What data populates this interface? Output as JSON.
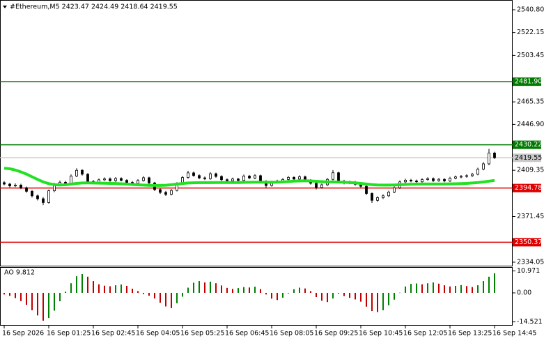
{
  "chart_data": [
    {
      "type": "candlestick",
      "title": "#Ethereum,M5  2423.47 2424.49 2418.64 2419.55",
      "ylim": [
        2330.6,
        2548.8
      ],
      "yticks": [
        {
          "value": 2540.8,
          "label": "2540.80"
        },
        2522.15,
        2503.45,
        2465.35,
        {
          "value": 2446.9,
          "label": "2446.90"
        },
        2409.35,
        2371.45,
        2334.05
      ],
      "categories": [
        "16 Sep 2026",
        null,
        null,
        null,
        null,
        null,
        null,
        null,
        "16 Sep 01:25",
        null,
        null,
        null,
        null,
        null,
        null,
        null,
        "16 Sep 02:45",
        null,
        null,
        null,
        null,
        null,
        null,
        null,
        "16 Sep 04:05",
        null,
        null,
        null,
        null,
        null,
        null,
        null,
        "16 Sep 05:25",
        null,
        null,
        null,
        null,
        null,
        null,
        null,
        "16 Sep 06:45",
        null,
        null,
        null,
        null,
        null,
        null,
        null,
        "16 Sep 08:05",
        null,
        null,
        null,
        null,
        null,
        null,
        null,
        "16 Sep 09:25",
        null,
        null,
        null,
        null,
        null,
        null,
        null,
        "16 Sep 10:45",
        null,
        null,
        null,
        null,
        null,
        null,
        null,
        "16 Sep 12:05",
        null,
        null,
        null,
        null,
        null,
        null,
        null,
        "16 Sep 13:25",
        null,
        null,
        null,
        null,
        null,
        null,
        null,
        "16 Sep 14:45"
      ],
      "candle_colors": {
        "up": "#ffffff",
        "down": "#000000",
        "outline": "#000000"
      },
      "ohlc": [
        [
          2399.2,
          2400.4,
          2397.0,
          2398.0
        ],
        [
          2398.0,
          2399.1,
          2395.3,
          2396.5
        ],
        [
          2396.5,
          2398.6,
          2395.6,
          2397.2
        ],
        [
          2397.2,
          2398.3,
          2393.8,
          2395.0
        ],
        [
          2395.0,
          2396.0,
          2390.9,
          2392.1
        ],
        [
          2392.1,
          2393.2,
          2387.0,
          2388.4
        ],
        [
          2388.4,
          2389.5,
          2384.6,
          2386.0
        ],
        [
          2386.0,
          2387.3,
          2380.8,
          2382.9
        ],
        [
          2382.9,
          2393.6,
          2382.0,
          2392.5
        ],
        [
          2392.5,
          2399.0,
          2391.4,
          2397.8
        ],
        [
          2397.8,
          2400.9,
          2396.6,
          2399.5
        ],
        [
          2399.5,
          2400.7,
          2397.0,
          2398.2
        ],
        [
          2398.2,
          2405.9,
          2397.5,
          2404.6
        ],
        [
          2404.6,
          2411.0,
          2403.8,
          2409.3
        ],
        [
          2409.3,
          2410.2,
          2405.0,
          2406.1
        ],
        [
          2406.1,
          2407.0,
          2399.1,
          2400.2
        ],
        [
          2400.2,
          2401.3,
          2397.8,
          2398.9
        ],
        [
          2398.9,
          2402.6,
          2398.0,
          2401.5
        ],
        [
          2401.5,
          2403.5,
          2400.6,
          2402.3
        ],
        [
          2402.3,
          2403.4,
          2399.9,
          2400.8
        ],
        [
          2400.8,
          2403.7,
          2399.8,
          2402.6
        ],
        [
          2402.6,
          2403.6,
          2400.2,
          2401.1
        ],
        [
          2401.1,
          2402.0,
          2398.3,
          2399.4
        ],
        [
          2399.4,
          2400.5,
          2397.4,
          2398.6
        ],
        [
          2398.6,
          2402.0,
          2397.7,
          2400.9
        ],
        [
          2400.9,
          2404.5,
          2400.0,
          2403.2
        ],
        [
          2403.2,
          2404.1,
          2397.9,
          2399.0
        ],
        [
          2399.0,
          2399.8,
          2392.3,
          2393.5
        ],
        [
          2393.5,
          2394.6,
          2389.9,
          2391.2
        ],
        [
          2391.2,
          2392.4,
          2388.3,
          2389.6
        ],
        [
          2389.6,
          2393.9,
          2388.7,
          2392.8
        ],
        [
          2392.8,
          2399.6,
          2392.0,
          2398.5
        ],
        [
          2398.5,
          2404.8,
          2397.6,
          2403.4
        ],
        [
          2403.4,
          2408.9,
          2402.5,
          2407.2
        ],
        [
          2407.2,
          2408.3,
          2404.0,
          2405.0
        ],
        [
          2405.0,
          2406.0,
          2402.0,
          2403.1
        ],
        [
          2403.1,
          2404.2,
          2401.3,
          2402.4
        ],
        [
          2402.4,
          2407.8,
          2401.6,
          2406.5
        ],
        [
          2406.5,
          2407.4,
          2403.2,
          2404.3
        ],
        [
          2404.3,
          2405.2,
          2400.5,
          2401.6
        ],
        [
          2401.6,
          2402.7,
          2399.6,
          2400.7
        ],
        [
          2400.7,
          2403.3,
          2399.8,
          2402.2
        ],
        [
          2402.2,
          2403.1,
          2400.1,
          2401.0
        ],
        [
          2401.0,
          2405.8,
          2400.2,
          2404.6
        ],
        [
          2404.6,
          2405.5,
          2402.1,
          2403.0
        ],
        [
          2403.0,
          2406.1,
          2402.0,
          2404.9
        ],
        [
          2404.9,
          2405.8,
          2399.2,
          2400.3
        ],
        [
          2400.3,
          2401.2,
          2394.9,
          2396.8
        ],
        [
          2396.8,
          2400.8,
          2395.9,
          2399.7
        ],
        [
          2399.7,
          2401.6,
          2398.8,
          2400.5
        ],
        [
          2400.5,
          2402.9,
          2399.6,
          2401.8
        ],
        [
          2401.8,
          2404.6,
          2400.9,
          2403.5
        ],
        [
          2403.5,
          2404.4,
          2401.2,
          2402.1
        ],
        [
          2402.1,
          2405.2,
          2401.3,
          2404.0
        ],
        [
          2404.0,
          2405.0,
          2400.2,
          2401.3
        ],
        [
          2401.3,
          2402.1,
          2397.6,
          2398.7
        ],
        [
          2398.7,
          2399.5,
          2393.6,
          2395.2
        ],
        [
          2395.2,
          2398.5,
          2394.3,
          2397.4
        ],
        [
          2397.4,
          2403.0,
          2396.5,
          2401.9
        ],
        [
          2401.9,
          2409.5,
          2401.0,
          2407.3
        ],
        [
          2407.3,
          2408.2,
          2399.3,
          2400.4
        ],
        [
          2400.4,
          2401.5,
          2397.8,
          2398.9
        ],
        [
          2398.9,
          2400.8,
          2397.9,
          2399.6
        ],
        [
          2399.6,
          2400.6,
          2396.7,
          2397.8
        ],
        [
          2397.8,
          2398.9,
          2395.0,
          2396.2
        ],
        [
          2396.2,
          2397.1,
          2389.0,
          2390.3
        ],
        [
          2390.3,
          2391.2,
          2382.6,
          2384.7
        ],
        [
          2384.7,
          2388.0,
          2383.5,
          2386.9
        ],
        [
          2386.9,
          2389.6,
          2385.8,
          2388.4
        ],
        [
          2388.4,
          2392.6,
          2387.5,
          2391.5
        ],
        [
          2391.5,
          2396.2,
          2390.6,
          2395.0
        ],
        [
          2395.0,
          2401.0,
          2394.1,
          2399.8
        ],
        [
          2399.8,
          2402.4,
          2398.9,
          2401.2
        ],
        [
          2401.2,
          2402.3,
          2399.5,
          2400.6
        ],
        [
          2400.6,
          2401.7,
          2398.8,
          2399.9
        ],
        [
          2399.9,
          2402.8,
          2399.0,
          2401.7
        ],
        [
          2401.7,
          2403.6,
          2400.8,
          2402.5
        ],
        [
          2402.5,
          2403.4,
          2399.7,
          2400.8
        ],
        [
          2400.8,
          2403.0,
          2399.9,
          2401.9
        ],
        [
          2401.9,
          2402.8,
          2399.5,
          2400.6
        ],
        [
          2400.6,
          2403.9,
          2399.7,
          2402.8
        ],
        [
          2402.8,
          2405.0,
          2401.9,
          2403.9
        ],
        [
          2403.9,
          2405.4,
          2402.8,
          2404.3
        ],
        [
          2404.3,
          2406.0,
          2403.2,
          2404.9
        ],
        [
          2404.9,
          2407.2,
          2403.8,
          2406.1
        ],
        [
          2406.1,
          2411.4,
          2405.2,
          2410.2
        ],
        [
          2410.2,
          2416.0,
          2409.3,
          2414.6
        ],
        [
          2414.6,
          2426.8,
          2413.5,
          2423.47
        ],
        [
          2423.47,
          2424.49,
          2418.64,
          2419.55
        ]
      ],
      "moving_average": {
        "color": "#22e022",
        "values": [
          2411.0,
          2410.6,
          2409.5,
          2408.0,
          2406.2,
          2404.0,
          2401.8,
          2399.8,
          2398.4,
          2397.6,
          2397.3,
          2397.5,
          2398.0,
          2398.6,
          2398.9,
          2399.0,
          2398.9,
          2398.8,
          2398.7,
          2398.6,
          2398.5,
          2398.3,
          2398.0,
          2397.7,
          2397.4,
          2397.2,
          2397.0,
          2396.9,
          2396.9,
          2397.1,
          2397.5,
          2398.0,
          2398.5,
          2398.9,
          2399.1,
          2399.2,
          2399.2,
          2399.2,
          2399.3,
          2399.3,
          2399.3,
          2399.3,
          2399.3,
          2399.4,
          2399.5,
          2399.6,
          2399.6,
          2399.5,
          2399.5,
          2399.6,
          2399.8,
          2400.1,
          2400.4,
          2400.6,
          2400.7,
          2400.6,
          2400.3,
          2400.0,
          2399.8,
          2399.8,
          2399.7,
          2399.5,
          2399.3,
          2399.0,
          2398.6,
          2398.1,
          2397.6,
          2397.3,
          2397.2,
          2397.2,
          2397.3,
          2397.5,
          2397.7,
          2397.9,
          2398.0,
          2398.1,
          2398.1,
          2398.1,
          2398.1,
          2398.1,
          2398.2,
          2398.3,
          2398.4,
          2398.6,
          2398.9,
          2399.3,
          2399.8,
          2400.4,
          2401.0
        ]
      },
      "levels": [
        {
          "value": 2481.9,
          "label": "2481.90",
          "color": "#007a00",
          "text_color": "#ffffff"
        },
        {
          "value": 2430.22,
          "label": "2430.22",
          "color": "#007a00",
          "text_color": "#ffffff"
        },
        {
          "value": 2419.55,
          "label": "2419.55",
          "color": "#c8c8c8",
          "text_color": "#000000"
        },
        {
          "value": 2394.78,
          "label": "2394.78",
          "color": "#e00000",
          "text_color": "#ffffff"
        },
        {
          "value": 2350.37,
          "label": "2350.37",
          "color": "#e00000",
          "text_color": "#ffffff"
        }
      ]
    },
    {
      "type": "bar",
      "title": "AO 9.812",
      "ylim": [
        -16.4,
        12.9
      ],
      "yticks": [
        10.971,
        {
          "value": 0,
          "label": "0.00"
        },
        -14.521
      ],
      "colors": {
        "up": "#008000",
        "down": "#c00000"
      },
      "values": [
        -0.8,
        -1.5,
        -2.6,
        -4.1,
        -6.0,
        -8.7,
        -11.3,
        -13.9,
        -12.6,
        -8.9,
        -4.2,
        0.6,
        4.8,
        8.3,
        9.4,
        8.1,
        5.9,
        4.3,
        3.6,
        3.3,
        3.8,
        4.2,
        3.5,
        2.1,
        0.9,
        -0.6,
        -1.4,
        -2.8,
        -4.9,
        -6.8,
        -7.6,
        -5.2,
        -1.9,
        2.6,
        5.1,
        5.9,
        5.2,
        5.6,
        4.8,
        3.7,
        2.5,
        2.0,
        2.4,
        2.9,
        2.7,
        3.1,
        1.9,
        -0.8,
        -2.9,
        -3.6,
        -2.4,
        -0.3,
        1.8,
        2.6,
        2.2,
        0.9,
        -2.1,
        -3.9,
        -4.6,
        -2.8,
        -0.4,
        -1.6,
        -2.5,
        -3.3,
        -4.4,
        -6.9,
        -9.1,
        -9.6,
        -8.7,
        -6.2,
        -3.4,
        0.1,
        3.2,
        4.5,
        4.7,
        4.3,
        4.8,
        5.2,
        4.6,
        3.8,
        3.2,
        3.5,
        3.9,
        3.4,
        2.9,
        3.8,
        5.9,
        8.1,
        9.812
      ]
    }
  ]
}
